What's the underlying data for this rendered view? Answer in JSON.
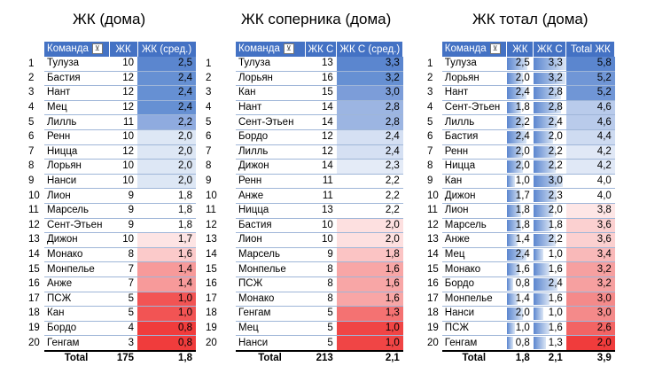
{
  "titles": {
    "home": "ЖК (дома)",
    "opp": "ЖК соперника (дома)",
    "total": "ЖК тотал (дома)"
  },
  "home": {
    "headers": {
      "team": "Команда",
      "c1": "ЖК",
      "c2": "ЖК (сред.)"
    },
    "rows": [
      {
        "idx": "1",
        "team": "Тулуза",
        "a": "10",
        "b": "2,5",
        "bg": "#5b86cf"
      },
      {
        "idx": "2",
        "team": "Бастия",
        "a": "12",
        "b": "2,4",
        "bg": "#6690d3"
      },
      {
        "idx": "3",
        "team": "Нант",
        "a": "12",
        "b": "2,4",
        "bg": "#6690d3"
      },
      {
        "idx": "4",
        "team": "Мец",
        "a": "12",
        "b": "2,4",
        "bg": "#6690d3"
      },
      {
        "idx": "5",
        "team": "Лилль",
        "a": "11",
        "b": "2,2",
        "bg": "#8fabdf"
      },
      {
        "idx": "6",
        "team": "Ренн",
        "a": "10",
        "b": "2,0",
        "bg": "#dde7f5"
      },
      {
        "idx": "7",
        "team": "Ницца",
        "a": "12",
        "b": "2,0",
        "bg": "#dde7f5"
      },
      {
        "idx": "8",
        "team": "Лорьян",
        "a": "10",
        "b": "2,0",
        "bg": "#dde7f5"
      },
      {
        "idx": "9",
        "team": "Нанси",
        "a": "10",
        "b": "2,0",
        "bg": "#dde7f5"
      },
      {
        "idx": "10",
        "team": "Лион",
        "a": "9",
        "b": "1,8",
        "bg": "#ffffff"
      },
      {
        "idx": "11",
        "team": "Марсель",
        "a": "9",
        "b": "1,8",
        "bg": "#ffffff"
      },
      {
        "idx": "12",
        "team": "Сент-Этьен",
        "a": "9",
        "b": "1,8",
        "bg": "#ffffff"
      },
      {
        "idx": "13",
        "team": "Дижон",
        "a": "10",
        "b": "1,7",
        "bg": "#fde4e4"
      },
      {
        "idx": "14",
        "team": "Монако",
        "a": "8",
        "b": "1,6",
        "bg": "#fbcaca"
      },
      {
        "idx": "15",
        "team": "Монпелье",
        "a": "7",
        "b": "1,4",
        "bg": "#f79a9a"
      },
      {
        "idx": "16",
        "team": "Анже",
        "a": "7",
        "b": "1,4",
        "bg": "#f79a9a"
      },
      {
        "idx": "17",
        "team": "ПСЖ",
        "a": "5",
        "b": "1,0",
        "bg": "#f25454"
      },
      {
        "idx": "18",
        "team": "Кан",
        "a": "5",
        "b": "1,0",
        "bg": "#f25454"
      },
      {
        "idx": "19",
        "team": "Бордо",
        "a": "4",
        "b": "0,8",
        "bg": "#f03c3c"
      },
      {
        "idx": "20",
        "team": "Генгам",
        "a": "3",
        "b": "0,8",
        "bg": "#f03c3c"
      }
    ],
    "total": {
      "label": "Total",
      "a": "175",
      "b": "1,8"
    }
  },
  "opp": {
    "headers": {
      "team": "Команда",
      "c1": "ЖК С",
      "c2": "ЖК С (сред.)"
    },
    "rows": [
      {
        "idx": "1",
        "team": "Тулуза",
        "a": "13",
        "b": "3,3",
        "bg": "#5b86cf"
      },
      {
        "idx": "2",
        "team": "Лорьян",
        "a": "16",
        "b": "3,2",
        "bg": "#6690d3"
      },
      {
        "idx": "3",
        "team": "Кан",
        "a": "15",
        "b": "3,0",
        "bg": "#7c9dd9"
      },
      {
        "idx": "4",
        "team": "Нант",
        "a": "14",
        "b": "2,8",
        "bg": "#9cb5e2"
      },
      {
        "idx": "5",
        "team": "Сент-Этьен",
        "a": "14",
        "b": "2,8",
        "bg": "#9cb5e2"
      },
      {
        "idx": "6",
        "team": "Бордо",
        "a": "12",
        "b": "2,4",
        "bg": "#d5e0f3"
      },
      {
        "idx": "7",
        "team": "Лилль",
        "a": "12",
        "b": "2,4",
        "bg": "#d5e0f3"
      },
      {
        "idx": "8",
        "team": "Дижон",
        "a": "14",
        "b": "2,3",
        "bg": "#e4ebf7"
      },
      {
        "idx": "9",
        "team": "Ренн",
        "a": "11",
        "b": "2,2",
        "bg": "#ffffff"
      },
      {
        "idx": "10",
        "team": "Анже",
        "a": "11",
        "b": "2,2",
        "bg": "#ffffff"
      },
      {
        "idx": "11",
        "team": "Ницца",
        "a": "13",
        "b": "2,2",
        "bg": "#ffffff"
      },
      {
        "idx": "12",
        "team": "Бастия",
        "a": "10",
        "b": "2,0",
        "bg": "#fde0e0"
      },
      {
        "idx": "13",
        "team": "Лион",
        "a": "10",
        "b": "2,0",
        "bg": "#fde0e0"
      },
      {
        "idx": "14",
        "team": "Марсель",
        "a": "9",
        "b": "1,8",
        "bg": "#fbc4c4"
      },
      {
        "idx": "15",
        "team": "Монпелье",
        "a": "8",
        "b": "1,6",
        "bg": "#f8a6a6"
      },
      {
        "idx": "16",
        "team": "ПСЖ",
        "a": "8",
        "b": "1,6",
        "bg": "#f8a6a6"
      },
      {
        "idx": "17",
        "team": "Монако",
        "a": "8",
        "b": "1,6",
        "bg": "#f8a6a6"
      },
      {
        "idx": "18",
        "team": "Генгам",
        "a": "5",
        "b": "1,3",
        "bg": "#f47272"
      },
      {
        "idx": "19",
        "team": "Мец",
        "a": "5",
        "b": "1,0",
        "bg": "#f04545"
      },
      {
        "idx": "20",
        "team": "Нанси",
        "a": "5",
        "b": "1,0",
        "bg": "#f04545"
      }
    ],
    "total": {
      "label": "Total",
      "a": "213",
      "b": "2,1"
    }
  },
  "total": {
    "headers": {
      "team": "Команда",
      "c1": "ЖК",
      "c2": "ЖК С",
      "c3": "Total ЖК"
    },
    "rows": [
      {
        "idx": "1",
        "team": "Тулуза",
        "a": "2,5",
        "b": "3,3",
        "c": "5,8",
        "fa": 0.76,
        "fb": 1.0,
        "bg": "#5b86cf"
      },
      {
        "idx": "2",
        "team": "Лорьян",
        "a": "2,0",
        "b": "3,2",
        "c": "5,2",
        "fa": 0.6,
        "fb": 0.97,
        "bg": "#7096d6"
      },
      {
        "idx": "3",
        "team": "Нант",
        "a": "2,4",
        "b": "2,8",
        "c": "5,2",
        "fa": 0.73,
        "fb": 0.85,
        "bg": "#7096d6"
      },
      {
        "idx": "4",
        "team": "Сент-Этьен",
        "a": "1,8",
        "b": "2,8",
        "c": "4,6",
        "fa": 0.55,
        "fb": 0.85,
        "bg": "#b9cbeb"
      },
      {
        "idx": "5",
        "team": "Лилль",
        "a": "2,2",
        "b": "2,4",
        "c": "4,6",
        "fa": 0.67,
        "fb": 0.73,
        "bg": "#b9cbeb"
      },
      {
        "idx": "6",
        "team": "Бастия",
        "a": "2,4",
        "b": "2,0",
        "c": "4,4",
        "fa": 0.73,
        "fb": 0.6,
        "bg": "#cedbf1"
      },
      {
        "idx": "7",
        "team": "Ренн",
        "a": "2,0",
        "b": "2,2",
        "c": "4,2",
        "fa": 0.6,
        "fb": 0.67,
        "bg": "#e0e8f6"
      },
      {
        "idx": "8",
        "team": "Ницца",
        "a": "2,0",
        "b": "2,2",
        "c": "4,2",
        "fa": 0.6,
        "fb": 0.67,
        "bg": "#e0e8f6"
      },
      {
        "idx": "9",
        "team": "Кан",
        "a": "1,0",
        "b": "3,0",
        "c": "4,0",
        "fa": 0.3,
        "fb": 0.91,
        "bg": "#ffffff"
      },
      {
        "idx": "10",
        "team": "Дижон",
        "a": "1,7",
        "b": "2,3",
        "c": "4,0",
        "fa": 0.52,
        "fb": 0.7,
        "bg": "#ffffff"
      },
      {
        "idx": "11",
        "team": "Лион",
        "a": "1,8",
        "b": "2,0",
        "c": "3,8",
        "fa": 0.55,
        "fb": 0.6,
        "bg": "#fde6e6"
      },
      {
        "idx": "12",
        "team": "Марсель",
        "a": "1,8",
        "b": "1,8",
        "c": "3,6",
        "fa": 0.55,
        "fb": 0.55,
        "bg": "#fbd0d0"
      },
      {
        "idx": "13",
        "team": "Анже",
        "a": "1,4",
        "b": "2,2",
        "c": "3,6",
        "fa": 0.42,
        "fb": 0.67,
        "bg": "#fbd0d0"
      },
      {
        "idx": "14",
        "team": "Мец",
        "a": "2,4",
        "b": "1,0",
        "c": "3,4",
        "fa": 0.73,
        "fb": 0.3,
        "bg": "#f9b9b9"
      },
      {
        "idx": "15",
        "team": "Монако",
        "a": "1,6",
        "b": "1,6",
        "c": "3,2",
        "fa": 0.48,
        "fb": 0.48,
        "bg": "#f6a0a0"
      },
      {
        "idx": "16",
        "team": "Бордо",
        "a": "0,8",
        "b": "2,4",
        "c": "3,2",
        "fa": 0.24,
        "fb": 0.73,
        "bg": "#f6a0a0"
      },
      {
        "idx": "17",
        "team": "Монпелье",
        "a": "1,4",
        "b": "1,6",
        "c": "3,0",
        "fa": 0.42,
        "fb": 0.48,
        "bg": "#f48a8a"
      },
      {
        "idx": "18",
        "team": "Нанси",
        "a": "2,0",
        "b": "1,0",
        "c": "3,0",
        "fa": 0.6,
        "fb": 0.3,
        "bg": "#f48a8a"
      },
      {
        "idx": "19",
        "team": "ПСЖ",
        "a": "1,0",
        "b": "1,6",
        "c": "2,6",
        "fa": 0.3,
        "fb": 0.48,
        "bg": "#f26464"
      },
      {
        "idx": "20",
        "team": "Генгам",
        "a": "0,8",
        "b": "1,3",
        "c": "2,0",
        "fa": 0.24,
        "fb": 0.39,
        "bg": "#f03c3c"
      }
    ],
    "total": {
      "label": "Total",
      "a": "1,8",
      "b": "2,1",
      "c": "3,9"
    }
  }
}
